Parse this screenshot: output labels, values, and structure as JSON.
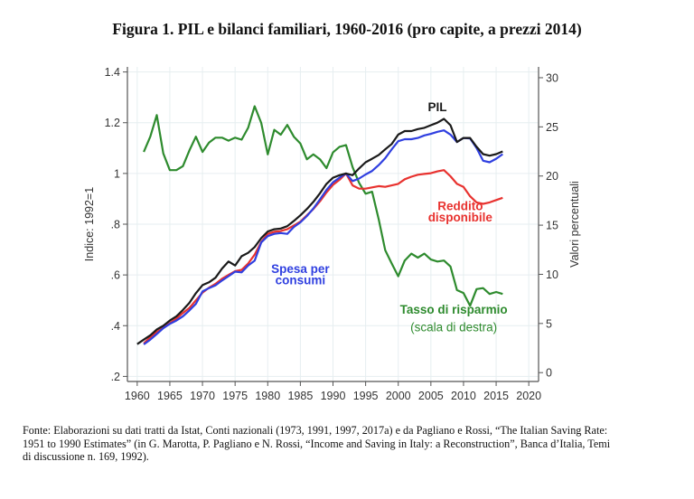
{
  "title": "Figura 1. PIL e bilanci familiari, 1960-2016 (pro capite, a prezzi 2014)",
  "footnote": [
    "Fonte: Elaborazioni su dati tratti da Istat, Conti nazionali (1973, 1991, 1997, 2017a) e da Pagliano e Rossi, “The Italian Saving Rate:",
    "1951 to 1990 Estimates” (in G. Marotta, P. Pagliano e N. Rossi, “Income and Saving in Italy: a Reconstruction”, Banca d’Italia, Temi",
    "di discussione n. 169, 1992)."
  ],
  "chart_data": {
    "type": "line",
    "title": "Figura 1. PIL e bilanci familiari, 1960-2016 (pro capite, a prezzi 2014)",
    "xlabel": "",
    "ylabel": "Indice: 1992=1",
    "y2label": "Valori percentuali",
    "xlim": [
      1958.5,
      2021.5
    ],
    "ylim": [
      0.18,
      1.42
    ],
    "y2lim": [
      -0.9,
      31.1
    ],
    "x_ticks": [
      1960,
      1965,
      1970,
      1975,
      1980,
      1985,
      1990,
      1995,
      2000,
      2005,
      2010,
      2015,
      2020
    ],
    "y_ticks": [
      {
        "value": 0.2,
        "label": ".2"
      },
      {
        "value": 0.4,
        "label": ".4"
      },
      {
        "value": 0.6,
        "label": ".6"
      },
      {
        "value": 0.8,
        "label": ".8"
      },
      {
        "value": 1.0,
        "label": "1"
      },
      {
        "value": 1.2,
        "label": "1.2"
      },
      {
        "value": 1.4,
        "label": "1.4"
      }
    ],
    "y2_ticks": [
      0,
      5,
      10,
      15,
      20,
      25,
      30
    ],
    "grid": true,
    "series": [
      {
        "name": "PIL",
        "axis": "left",
        "color": "#1a1a1a",
        "x": [
          1960,
          1961,
          1962,
          1963,
          1964,
          1965,
          1966,
          1967,
          1968,
          1969,
          1970,
          1971,
          1972,
          1973,
          1974,
          1975,
          1976,
          1977,
          1978,
          1979,
          1980,
          1981,
          1982,
          1983,
          1984,
          1985,
          1986,
          1987,
          1988,
          1989,
          1990,
          1991,
          1992,
          1993,
          1994,
          1995,
          1996,
          1997,
          1998,
          1999,
          2000,
          2001,
          2002,
          2003,
          2004,
          2005,
          2006,
          2007,
          2008,
          2009,
          2010,
          2011,
          2012,
          2013,
          2014,
          2015,
          2016
        ],
        "values": [
          0.327,
          0.345,
          0.362,
          0.385,
          0.4,
          0.42,
          0.437,
          0.462,
          0.49,
          0.528,
          0.56,
          0.571,
          0.589,
          0.625,
          0.653,
          0.637,
          0.674,
          0.687,
          0.71,
          0.745,
          0.771,
          0.78,
          0.783,
          0.792,
          0.813,
          0.835,
          0.86,
          0.888,
          0.922,
          0.959,
          0.983,
          0.993,
          1.0,
          0.993,
          1.02,
          1.044,
          1.058,
          1.073,
          1.095,
          1.116,
          1.153,
          1.167,
          1.167,
          1.175,
          1.18,
          1.19,
          1.2,
          1.215,
          1.19,
          1.124,
          1.14,
          1.14,
          1.105,
          1.076,
          1.07,
          1.076,
          1.087
        ]
      },
      {
        "name": "Spesa per consumi",
        "axis": "left",
        "color": "#2f3fe0",
        "x": [
          1961,
          1962,
          1963,
          1964,
          1965,
          1966,
          1967,
          1968,
          1969,
          1970,
          1971,
          1972,
          1973,
          1974,
          1975,
          1976,
          1977,
          1978,
          1979,
          1980,
          1981,
          1982,
          1983,
          1984,
          1985,
          1986,
          1987,
          1988,
          1989,
          1990,
          1991,
          1992,
          1993,
          1994,
          1995,
          1996,
          1997,
          1998,
          1999,
          2000,
          2001,
          2002,
          2003,
          2004,
          2005,
          2006,
          2007,
          2008,
          2009,
          2010,
          2011,
          2012,
          2013,
          2014,
          2015,
          2016
        ],
        "values": [
          0.326,
          0.345,
          0.367,
          0.39,
          0.407,
          0.42,
          0.437,
          0.46,
          0.486,
          0.535,
          0.548,
          0.559,
          0.578,
          0.595,
          0.613,
          0.61,
          0.637,
          0.656,
          0.728,
          0.753,
          0.762,
          0.765,
          0.762,
          0.789,
          0.807,
          0.832,
          0.862,
          0.898,
          0.935,
          0.965,
          0.983,
          1.0,
          0.97,
          0.98,
          0.996,
          1.01,
          1.033,
          1.06,
          1.095,
          1.127,
          1.135,
          1.135,
          1.14,
          1.15,
          1.156,
          1.164,
          1.17,
          1.153,
          1.124,
          1.14,
          1.138,
          1.1,
          1.05,
          1.044,
          1.058,
          1.076
        ]
      },
      {
        "name": "Reddito disponibile",
        "axis": "left",
        "color": "#e8322f",
        "x": [
          1961,
          1962,
          1963,
          1964,
          1965,
          1966,
          1967,
          1968,
          1969,
          1970,
          1971,
          1972,
          1973,
          1974,
          1975,
          1976,
          1977,
          1978,
          1979,
          1980,
          1981,
          1982,
          1983,
          1984,
          1985,
          1986,
          1987,
          1988,
          1989,
          1990,
          1991,
          1992,
          1993,
          1994,
          1995,
          1996,
          1997,
          1998,
          1999,
          2000,
          2001,
          2002,
          2003,
          2004,
          2005,
          2006,
          2007,
          2008,
          2009,
          2010,
          2011,
          2012,
          2013,
          2014,
          2015,
          2016
        ],
        "values": [
          0.33,
          0.355,
          0.375,
          0.392,
          0.41,
          0.428,
          0.45,
          0.47,
          0.5,
          0.53,
          0.55,
          0.565,
          0.585,
          0.6,
          0.615,
          0.62,
          0.645,
          0.68,
          0.73,
          0.762,
          0.77,
          0.773,
          0.78,
          0.795,
          0.81,
          0.835,
          0.86,
          0.89,
          0.925,
          0.955,
          0.975,
          1.0,
          0.953,
          0.94,
          0.94,
          0.945,
          0.95,
          0.947,
          0.953,
          0.959,
          0.977,
          0.987,
          0.995,
          0.998,
          1.001,
          1.008,
          1.013,
          0.989,
          0.959,
          0.947,
          0.91,
          0.886,
          0.88,
          0.886,
          0.895,
          0.904
        ]
      },
      {
        "name": "Tasso di risparmio (scala di destra)",
        "axis": "right",
        "color": "#2e8b2e",
        "x": [
          1961,
          1962,
          1963,
          1964,
          1965,
          1966,
          1967,
          1968,
          1969,
          1970,
          1971,
          1972,
          1973,
          1974,
          1975,
          1976,
          1977,
          1978,
          1979,
          1980,
          1981,
          1982,
          1983,
          1984,
          1985,
          1986,
          1987,
          1988,
          1989,
          1990,
          1991,
          1992,
          1993,
          1994,
          1995,
          1996,
          1997,
          1998,
          1999,
          2000,
          2001,
          2002,
          2003,
          2004,
          2005,
          2006,
          2007,
          2008,
          2009,
          2010,
          2011,
          2012,
          2013,
          2014,
          2015,
          2016
        ],
        "values": [
          22.45,
          24.0,
          26.2,
          22.3,
          20.6,
          20.6,
          21.0,
          22.6,
          24.0,
          22.45,
          23.4,
          23.9,
          23.9,
          23.6,
          23.9,
          23.7,
          24.9,
          27.1,
          25.4,
          22.2,
          24.7,
          24.2,
          25.2,
          24.0,
          23.3,
          21.7,
          22.2,
          21.7,
          20.8,
          22.4,
          22.97,
          23.15,
          20.9,
          19.3,
          18.2,
          18.4,
          15.6,
          12.45,
          11.1,
          9.8,
          11.4,
          12.1,
          11.7,
          12.1,
          11.5,
          11.3,
          11.4,
          10.8,
          8.4,
          8.1,
          6.8,
          8.5,
          8.6,
          8.0,
          8.2,
          8.0
        ]
      }
    ],
    "annotations": [
      {
        "text": "PIL",
        "color": "#1a1a1a",
        "x": 2006,
        "y": 1.245,
        "axis": "left"
      },
      {
        "text": "Reddito",
        "color": "#e8322f",
        "x": 2009.5,
        "y": 0.855,
        "axis": "left"
      },
      {
        "text": "disponibile",
        "color": "#e8322f",
        "x": 2009.5,
        "y": 0.81,
        "axis": "left"
      },
      {
        "text": "Spesa per",
        "color": "#2f3fe0",
        "x": 1985,
        "y": 0.608,
        "axis": "left"
      },
      {
        "text": "consumi",
        "color": "#2f3fe0",
        "x": 1985,
        "y": 0.563,
        "axis": "left"
      },
      {
        "text": "Tasso di risparmio",
        "color": "#2e8b2e",
        "x": 2008.5,
        "y": 6.0,
        "axis": "right"
      },
      {
        "text": "(scala di destra)",
        "color": "#2e8b2e",
        "x": 2008.5,
        "y": 4.2,
        "axis": "right",
        "weight": "normal"
      }
    ],
    "legend": "none (inline labels)"
  }
}
